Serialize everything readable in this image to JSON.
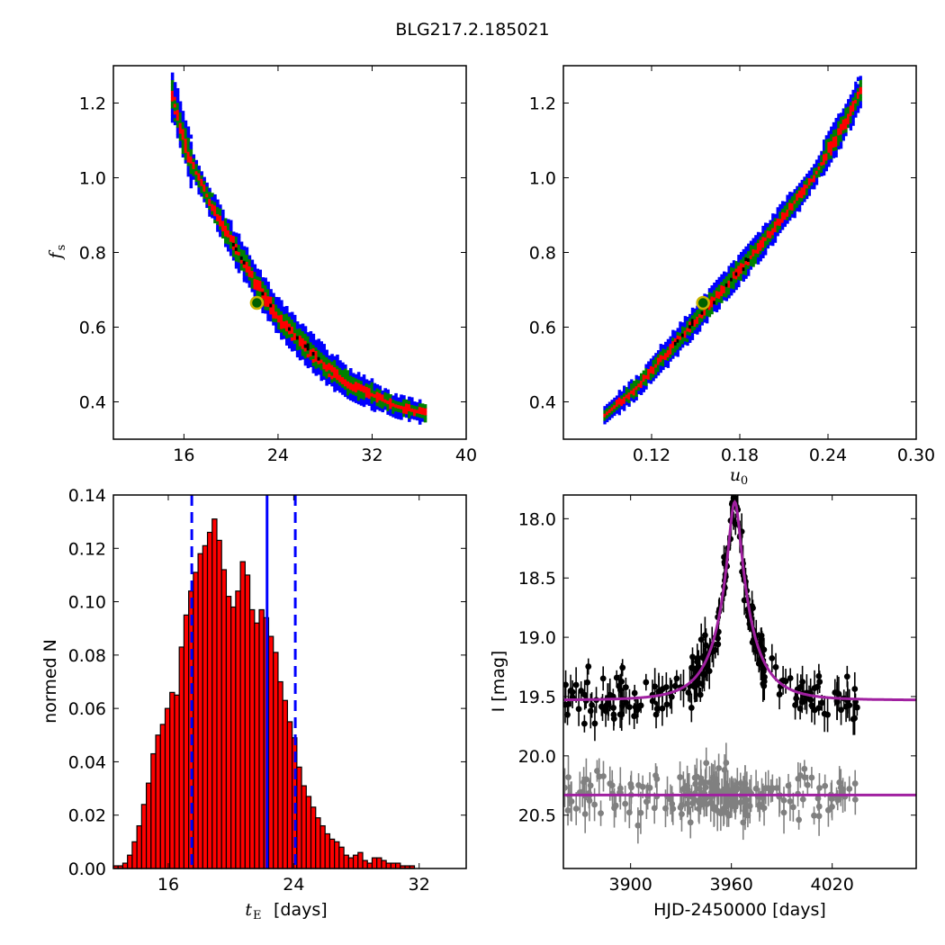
{
  "figure": {
    "title": "BLG217.2.185021"
  },
  "chart_data": [
    {
      "id": "tE_vs_fs",
      "type": "heatmap",
      "xlim": [
        10,
        40
      ],
      "ylim": [
        0.3,
        1.3
      ],
      "xticks": [
        "16",
        "24",
        "32",
        "40"
      ],
      "xtick_values": [
        16,
        24,
        32,
        40
      ],
      "yticks": [
        "0.4",
        "0.6",
        "0.8",
        "1.0",
        "1.2"
      ],
      "ytick_values": [
        0.4,
        0.6,
        0.8,
        1.0,
        1.2
      ],
      "ylabel": "f",
      "ylabel_sub": "s",
      "xlabel": "",
      "colors": {
        "outer": "#0000ff",
        "mid": "#008000",
        "inner": "#ff0000",
        "core": "#000000",
        "marker_edge": "#c8b400"
      },
      "ridge": {
        "x": [
          15,
          16.5,
          18,
          19.5,
          21,
          22.5,
          24,
          26,
          28,
          30,
          32,
          34,
          36.5
        ],
        "y": [
          1.22,
          1.05,
          0.95,
          0.86,
          0.78,
          0.7,
          0.63,
          0.56,
          0.5,
          0.45,
          0.42,
          0.39,
          0.37
        ]
      },
      "best_fit": {
        "x": 22.2,
        "y": 0.665
      }
    },
    {
      "id": "u0_vs_fs",
      "type": "heatmap",
      "xlim": [
        0.06,
        0.3
      ],
      "ylim": [
        0.3,
        1.3
      ],
      "xticks": [
        "0.12",
        "0.18",
        "0.24",
        "0.30"
      ],
      "xtick_values": [
        0.12,
        0.18,
        0.24,
        0.3
      ],
      "yticks": [
        "0.4",
        "0.6",
        "0.8",
        "1.0",
        "1.2"
      ],
      "ytick_values": [
        0.4,
        0.6,
        0.8,
        1.0,
        1.2
      ],
      "xlabel": "u",
      "xlabel_sub": "0",
      "ylabel": "",
      "ridge": {
        "x": [
          0.088,
          0.11,
          0.13,
          0.15,
          0.17,
          0.19,
          0.21,
          0.23,
          0.25,
          0.262
        ],
        "y": [
          0.365,
          0.44,
          0.53,
          0.62,
          0.71,
          0.8,
          0.9,
          1.0,
          1.14,
          1.23
        ]
      },
      "best_fit": {
        "x": 0.155,
        "y": 0.665
      }
    },
    {
      "id": "tE_histogram",
      "type": "bar",
      "xlim": [
        12.5,
        35.0
      ],
      "ylim": [
        0.0,
        0.14
      ],
      "xticks": [
        "16",
        "24",
        "32"
      ],
      "xtick_values": [
        16,
        24,
        32
      ],
      "yticks": [
        "0.00",
        "0.02",
        "0.04",
        "0.06",
        "0.08",
        "0.10",
        "0.12",
        "0.14"
      ],
      "ytick_values": [
        0.0,
        0.02,
        0.04,
        0.06,
        0.08,
        0.1,
        0.12,
        0.14
      ],
      "xlabel_math": "t",
      "xlabel_sub": "E",
      "xlabel_text": "[days]",
      "ylabel": "normed N",
      "bin_start": 12.5,
      "bin_width": 0.3,
      "values": [
        0.001,
        0.001,
        0.002,
        0.005,
        0.01,
        0.016,
        0.024,
        0.032,
        0.043,
        0.05,
        0.054,
        0.06,
        0.066,
        0.065,
        0.083,
        0.095,
        0.104,
        0.111,
        0.118,
        0.121,
        0.126,
        0.131,
        0.123,
        0.112,
        0.102,
        0.098,
        0.104,
        0.115,
        0.11,
        0.097,
        0.092,
        0.097,
        0.094,
        0.087,
        0.081,
        0.07,
        0.063,
        0.055,
        0.049,
        0.038,
        0.031,
        0.027,
        0.023,
        0.019,
        0.016,
        0.013,
        0.011,
        0.01,
        0.008,
        0.005,
        0.004,
        0.005,
        0.006,
        0.003,
        0.002,
        0.004,
        0.004,
        0.003,
        0.002,
        0.002,
        0.002,
        0.001,
        0.001,
        0.001,
        0.0,
        0.0,
        0.0,
        0.0
      ],
      "bar_color": "#ff0000",
      "lines": {
        "median": 22.3,
        "lower": 17.5,
        "upper": 24.1,
        "color": "#0000ff"
      }
    },
    {
      "id": "light_curve",
      "type": "scatter",
      "xlim": [
        3860,
        4070
      ],
      "ylim_inverted": [
        17.8,
        20.95
      ],
      "xticks": [
        "3900",
        "3960",
        "4020"
      ],
      "xtick_values": [
        3900,
        3960,
        4020
      ],
      "yticks": [
        "18.0",
        "18.5",
        "19.0",
        "19.5",
        "20.0",
        "20.5"
      ],
      "ytick_values": [
        18.0,
        18.5,
        19.0,
        19.5,
        20.0,
        20.5
      ],
      "xlabel": "HJD-2450000 [days]",
      "ylabel": "I [mag]",
      "model": {
        "t0": 3962,
        "tE": 22,
        "u0": 0.155,
        "fs": 0.665,
        "baseline": 19.53,
        "color": "#a020a0"
      },
      "flat_model": {
        "mag": 20.33
      },
      "series": [
        {
          "color": "#000000"
        },
        {
          "color": "#808080"
        }
      ]
    }
  ]
}
